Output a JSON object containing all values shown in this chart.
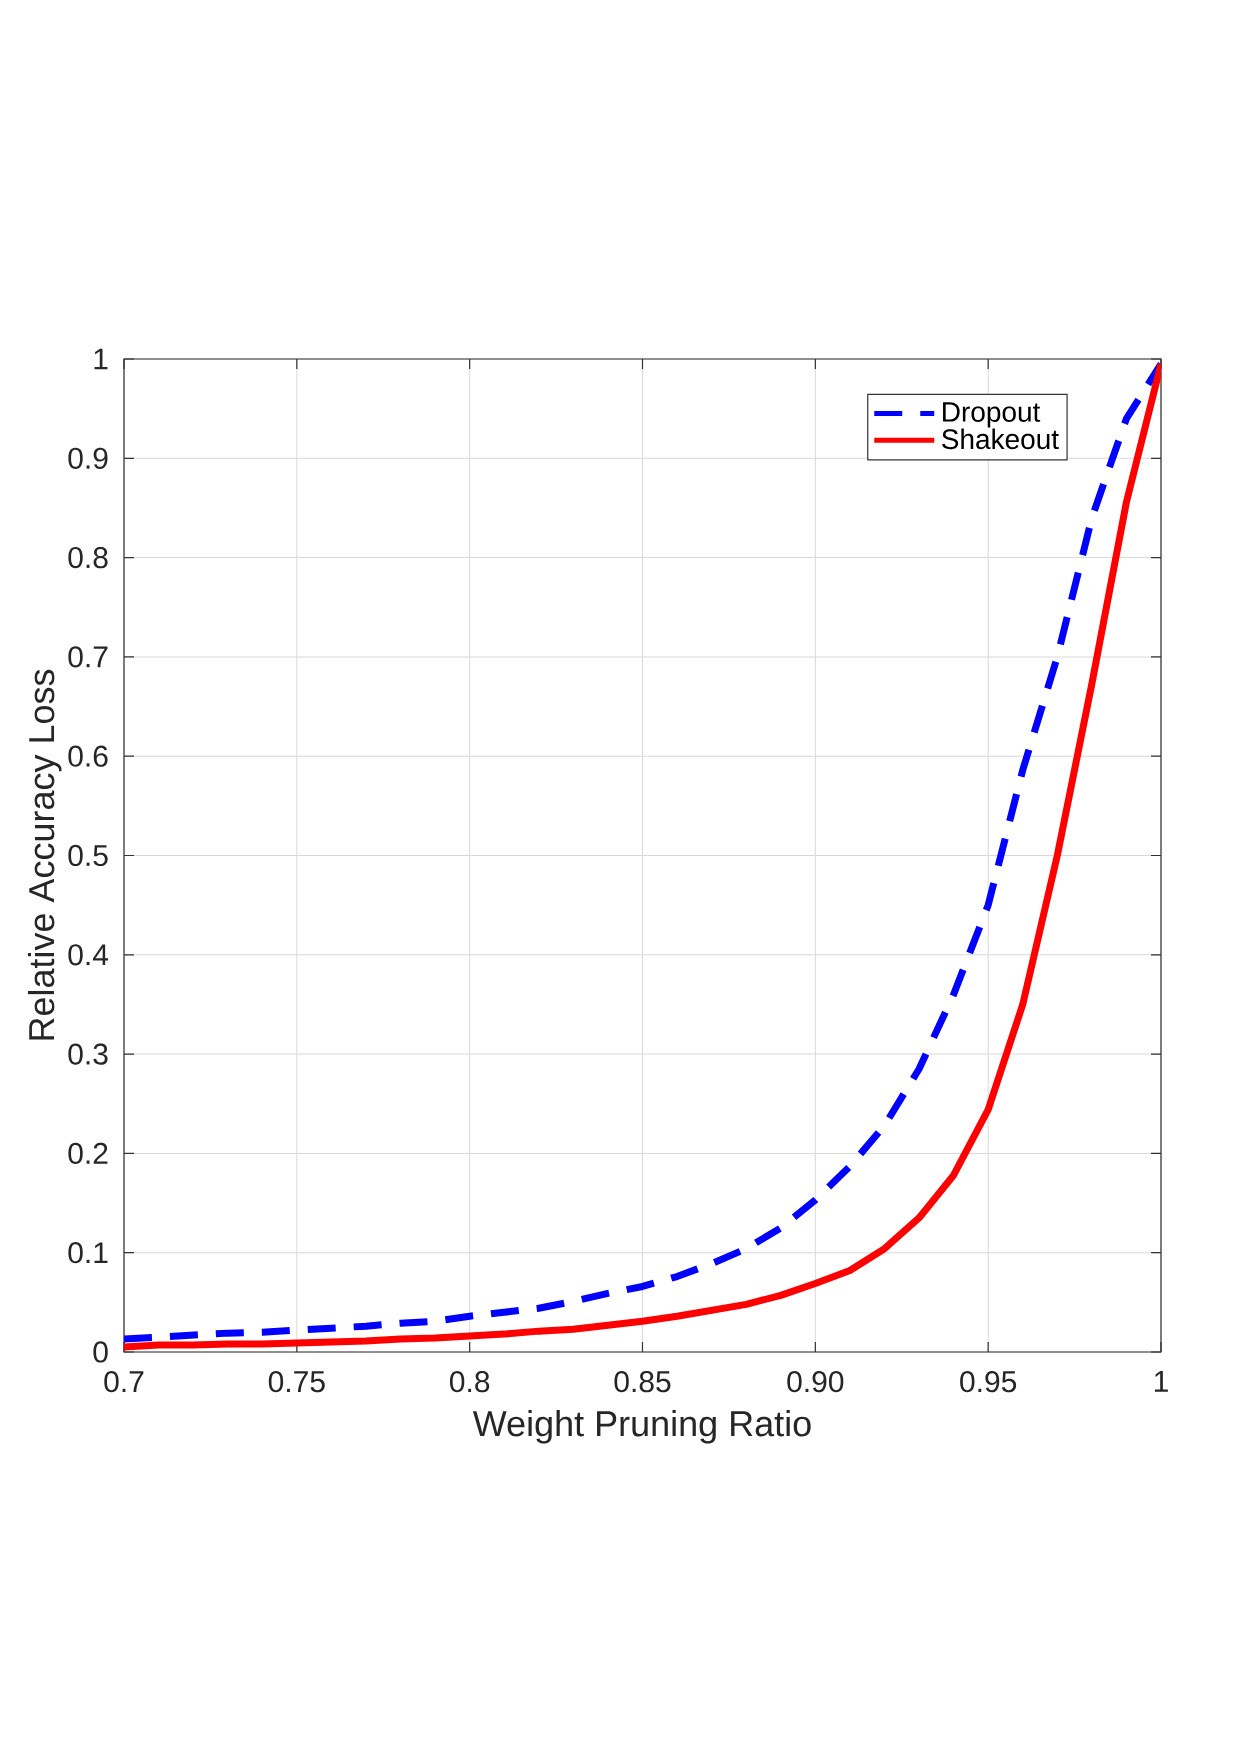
{
  "chart_data": {
    "type": "line",
    "xlabel": "Weight Pruning Ratio",
    "ylabel": "Relative Accuracy Loss",
    "x": [
      0.7,
      0.71,
      0.72,
      0.73,
      0.74,
      0.75,
      0.76,
      0.77,
      0.78,
      0.79,
      0.8,
      0.81,
      0.82,
      0.83,
      0.84,
      0.85,
      0.86,
      0.87,
      0.88,
      0.89,
      0.9,
      0.91,
      0.92,
      0.93,
      0.94,
      0.95,
      0.96,
      0.97,
      0.98,
      0.99,
      1.0
    ],
    "series": [
      {
        "name": "Dropout",
        "color": "#0000ff",
        "line_style": "dashed",
        "values": [
          0.013,
          0.015,
          0.017,
          0.019,
          0.02,
          0.022,
          0.024,
          0.026,
          0.029,
          0.031,
          0.036,
          0.04,
          0.044,
          0.051,
          0.059,
          0.066,
          0.076,
          0.089,
          0.104,
          0.125,
          0.153,
          0.187,
          0.228,
          0.285,
          0.36,
          0.45,
          0.586,
          0.7,
          0.84,
          0.94,
          0.995
        ]
      },
      {
        "name": "Shakeout",
        "color": "#ff0000",
        "line_style": "solid",
        "values": [
          0.005,
          0.007,
          0.007,
          0.008,
          0.008,
          0.009,
          0.01,
          0.011,
          0.013,
          0.014,
          0.016,
          0.018,
          0.021,
          0.023,
          0.027,
          0.031,
          0.036,
          0.042,
          0.048,
          0.057,
          0.069,
          0.082,
          0.104,
          0.135,
          0.178,
          0.244,
          0.35,
          0.5,
          0.673,
          0.856,
          0.995
        ]
      }
    ],
    "xlim": [
      0.7,
      1
    ],
    "ylim": [
      0,
      1
    ],
    "xticks": [
      0.7,
      0.75,
      0.8,
      0.85,
      {
        "value": 0.9,
        "label": "0.90"
      },
      0.95,
      1
    ],
    "yticks": [
      0,
      0.1,
      0.2,
      0.3,
      0.4,
      0.5,
      0.6,
      0.7,
      0.8,
      0.9,
      1
    ],
    "grid": true,
    "legend": "top right",
    "marker": "none"
  }
}
